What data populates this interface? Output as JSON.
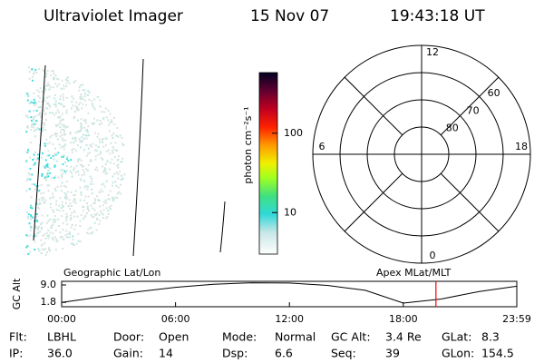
{
  "header": {
    "title": "Ultraviolet Imager",
    "date": "15 Nov 07",
    "time": "19:43:18 UT"
  },
  "colorbar": {
    "label": "photon cm⁻²s⁻¹",
    "scale": "log",
    "lim": [
      3,
      580
    ],
    "ticks": [
      10,
      100
    ]
  },
  "polar": {
    "mlt_labels": [
      12,
      18,
      6,
      0
    ],
    "lat_lim": [
      50,
      90
    ],
    "lat_rings": [
      60,
      70,
      80
    ]
  },
  "chart_data": {
    "type": "line",
    "ylabel": "GC Alt",
    "left_label": "Geographic Lat/Lon",
    "right_label": "Apex MLat/MLT",
    "x": [
      0,
      2,
      4,
      6,
      8,
      10,
      12,
      14,
      16,
      18,
      20,
      22,
      23.98
    ],
    "series": [
      {
        "color": "#000000",
        "values": [
          1.8,
          4.0,
          6.2,
          8.0,
          9.3,
          9.9,
          9.8,
          8.8,
          6.8,
          1.5,
          3.2,
          6.3,
          8.5
        ]
      }
    ],
    "xlim": [
      0,
      23.98
    ],
    "xticks": [
      {
        "value": 0,
        "label": "00:00"
      },
      {
        "value": 6,
        "label": "06:00"
      },
      {
        "value": 12,
        "label": "12:00"
      },
      {
        "value": 18,
        "label": "18:00"
      },
      {
        "value": 23.98,
        "label": "23:59"
      }
    ],
    "ylim": [
      0,
      10.5
    ],
    "yticks": [
      {
        "value": 9,
        "label": "9.0"
      },
      {
        "value": 1.8,
        "label": "1.8"
      }
    ],
    "marker": {
      "x": 19.72,
      "color": "#ff0000"
    }
  },
  "info": [
    [
      {
        "label": "Flt:",
        "value": "LBHL"
      },
      {
        "label": "Door:",
        "value": "Open"
      },
      {
        "label": "Mode:",
        "value": "Normal"
      },
      {
        "label": "GC Alt:",
        "value": "3.4 Re"
      },
      {
        "label": "GLat:",
        "value": "8.3"
      }
    ],
    [
      {
        "label": "IP:",
        "value": "36.0"
      },
      {
        "label": "Gain:",
        "value": "14"
      },
      {
        "label": "Dsp:",
        "value": "6.6"
      },
      {
        "label": "Seq:",
        "value": "39"
      },
      {
        "label": "GLon:",
        "value": "154.5"
      }
    ]
  ]
}
